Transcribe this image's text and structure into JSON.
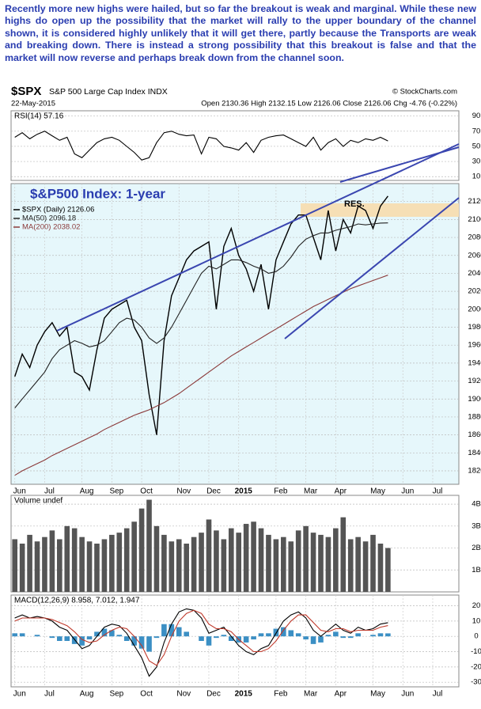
{
  "commentary": "Recently more new highs were hailed, but so far the breakout is weak and marginal. While these new highs do open up the possibility that the market will rally to the upper boundary of the channel shown, it is considered highly unlikely that it will get there, partly because the Transports are weak and breaking down. There is instead a strong possibility that this breakout is false and that the market will now reverse and perhaps break down from the channel soon.",
  "header": {
    "symbol": "$SPX",
    "name": "S&P 500 Large Cap Index INDX",
    "date": "22-May-2015",
    "quote": "Open 2130.36  High 2132.15  Low 2126.06  Close 2126.06  Chg -4.76 (-0.22%)",
    "source": "© StockCharts.com"
  },
  "chart_data": [
    {
      "type": "line",
      "title": "RSI(14) 57.16",
      "ylim": [
        5,
        97
      ],
      "yticks": [
        10,
        30,
        50,
        70,
        90
      ],
      "grid": true,
      "series": [
        {
          "color": "#000000",
          "values": [
            62,
            68,
            60,
            66,
            70,
            64,
            58,
            62,
            40,
            35,
            45,
            55,
            60,
            62,
            58,
            50,
            42,
            32,
            35,
            55,
            68,
            70,
            66,
            64,
            65,
            40,
            62,
            60,
            50,
            48,
            45,
            55,
            42,
            58,
            62,
            64,
            65,
            60,
            55,
            50,
            62,
            45,
            55,
            60,
            50,
            58,
            55,
            60,
            58,
            62,
            57.16,
            null,
            null,
            null,
            null,
            null,
            null,
            null,
            null,
            null
          ]
        }
      ]
    },
    {
      "type": "line",
      "title": "$&P500 Index: 1-year",
      "annotation": "RES.",
      "ylim": [
        1805,
        2140
      ],
      "yticks": [
        1820,
        1840,
        1860,
        1880,
        1900,
        1920,
        1940,
        1960,
        1980,
        2000,
        2020,
        2040,
        2060,
        2080,
        2100,
        2120
      ],
      "grid": true,
      "categories": [
        "Jun",
        null,
        null,
        null,
        "Jul",
        null,
        null,
        null,
        null,
        "Aug",
        null,
        null,
        null,
        "Sep",
        null,
        null,
        null,
        "Oct",
        null,
        null,
        null,
        null,
        "Nov",
        null,
        null,
        null,
        "Dec",
        null,
        null,
        null,
        "2015",
        null,
        null,
        null,
        null,
        "Feb",
        null,
        null,
        null,
        "Mar",
        null,
        null,
        null,
        "Apr",
        null,
        null,
        null,
        null,
        "May",
        null,
        null,
        null,
        "Jun",
        null,
        null,
        null,
        "Jul",
        null,
        null,
        null
      ],
      "series": [
        {
          "name": "$SPX (Daily) 2126.06",
          "color": "#000000",
          "values": [
            1925,
            1950,
            1935,
            1960,
            1975,
            1985,
            1970,
            1980,
            1930,
            1925,
            1910,
            1955,
            1990,
            2000,
            2005,
            2010,
            1980,
            1965,
            1905,
            1860,
            1965,
            2015,
            2035,
            2055,
            2065,
            2070,
            2075,
            2000,
            2070,
            2090,
            2060,
            2045,
            2020,
            2050,
            2000,
            2055,
            2075,
            2095,
            2105,
            2105,
            2080,
            2055,
            2110,
            2065,
            2100,
            2085,
            2115,
            2110,
            2090,
            2115,
            2126.06,
            null,
            null,
            null,
            null,
            null,
            null,
            null,
            null,
            null
          ]
        },
        {
          "name": "MA(50) 2096.18",
          "color": "#222222",
          "values": [
            1890,
            1900,
            1910,
            1920,
            1930,
            1945,
            1955,
            1960,
            1965,
            1962,
            1958,
            1960,
            1965,
            1975,
            1985,
            1990,
            1988,
            1980,
            1968,
            1962,
            1968,
            1980,
            1995,
            2010,
            2025,
            2040,
            2048,
            2045,
            2050,
            2055,
            2055,
            2052,
            2048,
            2045,
            2040,
            2042,
            2048,
            2058,
            2070,
            2078,
            2082,
            2085,
            2085,
            2088,
            2090,
            2092,
            2095,
            2094,
            2095,
            2096,
            2096.18,
            null,
            null,
            null,
            null,
            null,
            null,
            null,
            null,
            null
          ]
        },
        {
          "name": "MA(200) 2038.02",
          "color": "#8b3a3a",
          "values": [
            1815,
            1820,
            1824,
            1828,
            1832,
            1837,
            1841,
            1845,
            1849,
            1853,
            1857,
            1861,
            1866,
            1870,
            1874,
            1878,
            1882,
            1885,
            1888,
            1892,
            1896,
            1901,
            1906,
            1912,
            1918,
            1924,
            1930,
            1936,
            1942,
            1948,
            1953,
            1958,
            1963,
            1968,
            1973,
            1978,
            1983,
            1988,
            1993,
            1998,
            2003,
            2007,
            2011,
            2015,
            2019,
            2023,
            2026,
            2029,
            2032,
            2035,
            2038.02,
            null,
            null,
            null,
            null,
            null,
            null,
            null,
            null,
            null
          ]
        }
      ]
    },
    {
      "type": "bar",
      "title": "Volume undef",
      "ylim": [
        0,
        4.4
      ],
      "yticks": [
        {
          "value": 1,
          "label": "1B"
        },
        {
          "value": 2,
          "label": "2B"
        },
        {
          "value": 3,
          "label": "3B"
        },
        {
          "value": 4,
          "label": "4B"
        }
      ],
      "grid": true,
      "series": [
        {
          "color": "#555555",
          "values": [
            2.4,
            2.2,
            2.6,
            2.3,
            2.5,
            2.8,
            2.4,
            3.0,
            2.9,
            2.5,
            2.3,
            2.2,
            2.4,
            2.6,
            2.7,
            2.9,
            3.2,
            3.8,
            4.2,
            3.0,
            2.6,
            2.3,
            2.4,
            2.2,
            2.5,
            2.7,
            3.3,
            2.8,
            2.4,
            2.9,
            2.7,
            3.1,
            3.2,
            2.9,
            2.6,
            2.4,
            2.5,
            2.3,
            2.8,
            3.0,
            2.7,
            2.6,
            2.5,
            2.9,
            3.4,
            2.4,
            2.5,
            2.3,
            2.6,
            2.2,
            2.0,
            null,
            null,
            null,
            null,
            null,
            null,
            null,
            null,
            null
          ]
        }
      ]
    },
    {
      "type": "line",
      "title": "MACD(12,26,9) 8.958, 7.012, 1.947",
      "ylim": [
        -33,
        27
      ],
      "yticks": [
        -30,
        -20,
        -10,
        0,
        10,
        20
      ],
      "grid": true,
      "categories": [
        "Jun",
        null,
        null,
        null,
        "Jul",
        null,
        null,
        null,
        null,
        "Aug",
        null,
        null,
        null,
        "Sep",
        null,
        null,
        null,
        "Oct",
        null,
        null,
        null,
        null,
        "Nov",
        null,
        null,
        null,
        "Dec",
        null,
        null,
        null,
        "2015",
        null,
        null,
        null,
        null,
        "Feb",
        null,
        null,
        null,
        "Mar",
        null,
        null,
        null,
        "Apr",
        null,
        null,
        null,
        null,
        "May",
        null,
        null,
        null,
        "Jun",
        null,
        null,
        null,
        "Jul",
        null,
        null,
        null
      ],
      "series": [
        {
          "type": "bar",
          "color": "#3b8fc4",
          "values": [
            2,
            2,
            0,
            1,
            0,
            -1,
            -3,
            -3,
            -5,
            -6,
            -2,
            3,
            5,
            4,
            1,
            -3,
            -6,
            -8,
            -10,
            -1,
            8,
            8,
            6,
            3,
            0,
            -3,
            -6,
            -1,
            1,
            -3,
            -4,
            -4,
            -2,
            2,
            2,
            5,
            6,
            4,
            2,
            -2,
            -5,
            -4,
            1,
            3,
            -1,
            -1,
            2,
            0,
            1,
            2,
            1.947,
            null,
            null,
            null,
            null,
            null,
            null,
            null,
            null,
            null
          ]
        },
        {
          "color": "#000000",
          "values": [
            12,
            14,
            12,
            13,
            12,
            10,
            6,
            4,
            -2,
            -8,
            -6,
            0,
            6,
            8,
            7,
            2,
            -6,
            -14,
            -26,
            -20,
            -4,
            8,
            16,
            18,
            17,
            12,
            2,
            4,
            6,
            0,
            -6,
            -10,
            -12,
            -8,
            -6,
            2,
            10,
            14,
            16,
            12,
            4,
            0,
            4,
            8,
            4,
            2,
            6,
            4,
            5,
            8,
            8.958,
            null,
            null,
            null,
            null,
            null,
            null,
            null,
            null,
            null
          ]
        },
        {
          "color": "#c0392b",
          "values": [
            10,
            12,
            12,
            12,
            12,
            11,
            9,
            7,
            3,
            -2,
            -4,
            -3,
            1,
            4,
            6,
            5,
            0,
            -6,
            -16,
            -19,
            -12,
            0,
            10,
            15,
            17,
            15,
            8,
            5,
            5,
            3,
            -2,
            -6,
            -10,
            -10,
            -8,
            -3,
            4,
            10,
            14,
            14,
            9,
            4,
            3,
            5,
            5,
            3,
            4,
            4,
            4,
            6,
            7.012,
            null,
            null,
            null,
            null,
            null,
            null,
            null,
            null,
            null
          ]
        }
      ]
    }
  ]
}
